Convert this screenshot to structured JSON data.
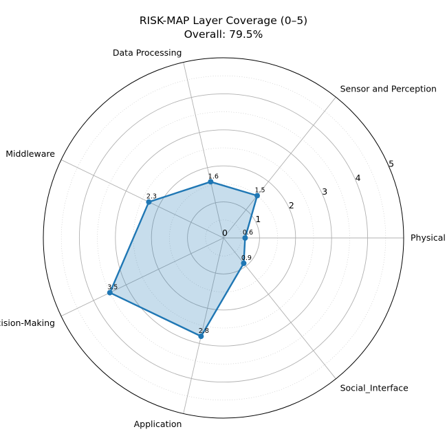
{
  "chart_data": {
    "type": "radar",
    "title": "RISK-MAP Layer Coverage (0–5)",
    "subtitle": "Overall: 79.5%",
    "categories": [
      "Physical",
      "Sensor and Perception",
      "Data Processing",
      "Middleware",
      "Decision-Making",
      "Application",
      "Social_Interface"
    ],
    "values": [
      0.6,
      1.5,
      1.6,
      2.3,
      3.5,
      2.8,
      0.9
    ],
    "value_labels": [
      "0.6",
      "1.5",
      "1.6",
      "2.3",
      "3.5",
      "2.8",
      "0.9"
    ],
    "rlim": [
      0,
      5
    ],
    "r_ticks_major": [
      0,
      1,
      2,
      3,
      4,
      5
    ],
    "r_ticks_minor": [
      0.5,
      1.5,
      2.5,
      3.5,
      4.5
    ],
    "r_tick_labels": [
      "0",
      "1",
      "2",
      "3",
      "4",
      "5"
    ],
    "grid": true,
    "colors": {
      "line": "#1f77b4",
      "fill": "#1f77b4",
      "grid": "#b0b0b0",
      "outline": "#000000"
    }
  }
}
